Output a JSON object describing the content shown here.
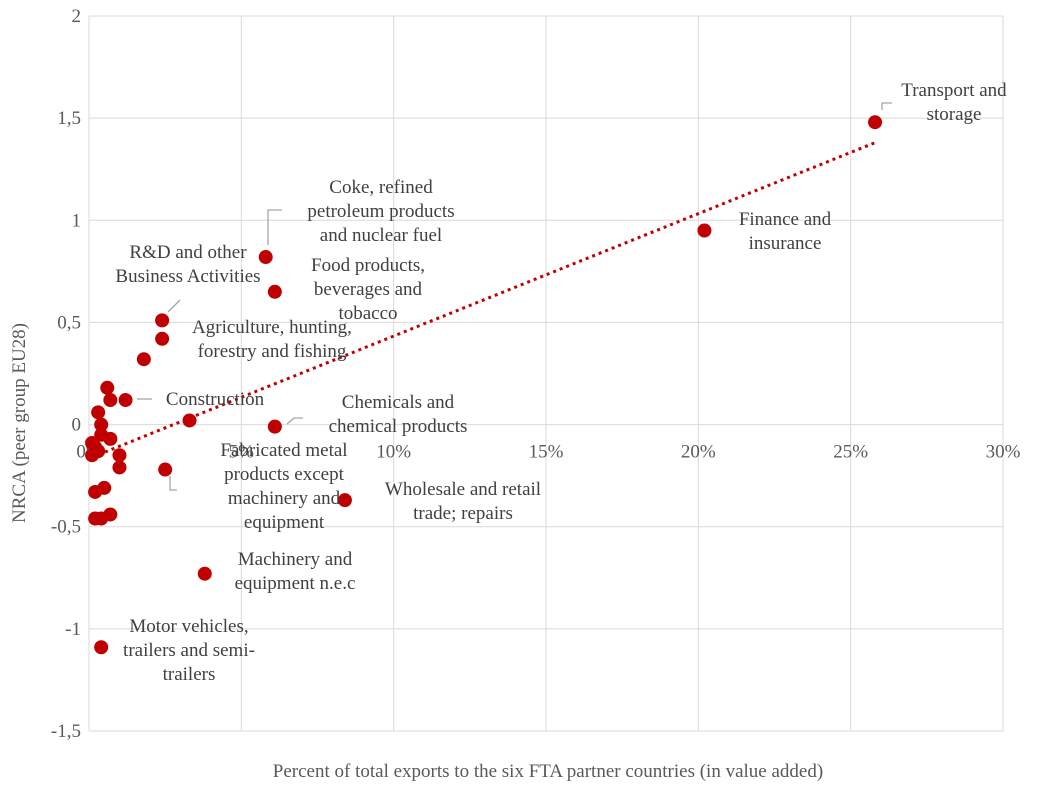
{
  "chart_data": {
    "type": "scatter",
    "xlabel": "Percent of total exports to the six FTA partner countries  (in value added)",
    "ylabel": "NRCA (peer group EU28)",
    "xlim": [
      0,
      30
    ],
    "ylim": [
      -1.5,
      2
    ],
    "x_ticks": [
      "0%",
      "5%",
      "10%",
      "15%",
      "20%",
      "25%",
      "30%"
    ],
    "y_ticks": [
      "2",
      "1,5",
      "1",
      "0,5",
      "0",
      "-0,5",
      "-1",
      "-1,5"
    ],
    "grid": true,
    "marker_color": "#c00000",
    "trendline": {
      "style": "dotted",
      "color": "#c00000",
      "x": [
        0.1,
        25.8
      ],
      "y": [
        -0.16,
        1.38
      ]
    },
    "points": [
      {
        "x": 25.8,
        "y": 1.48,
        "label": [
          "Transport and",
          "storage"
        ]
      },
      {
        "x": 20.2,
        "y": 0.95,
        "label": [
          "Finance and",
          "insurance"
        ]
      },
      {
        "x": 5.8,
        "y": 0.82,
        "label": [
          "Coke, refined",
          "petroleum products",
          "and nuclear fuel"
        ]
      },
      {
        "x": 6.1,
        "y": 0.65,
        "label": [
          "Food products,",
          "beverages and",
          "tobacco"
        ]
      },
      {
        "x": 2.4,
        "y": 0.51,
        "label": [
          "R&D and other",
          "Business Activities"
        ]
      },
      {
        "x": 2.4,
        "y": 0.42,
        "label": [
          "Agriculture, hunting,",
          "forestry and fishing"
        ]
      },
      {
        "x": 1.2,
        "y": 0.12,
        "label": [
          "Construction"
        ]
      },
      {
        "x": 6.1,
        "y": -0.01,
        "label": [
          "Chemicals and",
          "chemical products"
        ]
      },
      {
        "x": 2.5,
        "y": -0.22,
        "label": [
          "Fabricated metal",
          "products except",
          "machinery and",
          "equipment"
        ]
      },
      {
        "x": 8.4,
        "y": -0.37,
        "label": [
          "Wholesale and retail",
          "trade; repairs"
        ]
      },
      {
        "x": 3.8,
        "y": -0.73,
        "label": [
          "Machinery and",
          "equipment n.e.c"
        ]
      },
      {
        "x": 0.4,
        "y": -1.09,
        "label": [
          "Motor vehicles,",
          "trailers and semi-",
          "trailers"
        ]
      },
      {
        "x": 1.8,
        "y": 0.32,
        "label": []
      },
      {
        "x": 0.6,
        "y": 0.18,
        "label": []
      },
      {
        "x": 0.7,
        "y": 0.12,
        "label": []
      },
      {
        "x": 3.3,
        "y": 0.02,
        "label": []
      },
      {
        "x": 0.3,
        "y": 0.06,
        "label": []
      },
      {
        "x": 0.4,
        "y": 0.0,
        "label": []
      },
      {
        "x": 0.4,
        "y": -0.05,
        "label": []
      },
      {
        "x": 0.7,
        "y": -0.07,
        "label": []
      },
      {
        "x": 0.1,
        "y": -0.09,
        "label": []
      },
      {
        "x": 0.2,
        "y": -0.11,
        "label": []
      },
      {
        "x": 0.3,
        "y": -0.13,
        "label": []
      },
      {
        "x": 0.1,
        "y": -0.15,
        "label": []
      },
      {
        "x": 1.0,
        "y": -0.15,
        "label": []
      },
      {
        "x": 1.0,
        "y": -0.21,
        "label": []
      },
      {
        "x": 0.5,
        "y": -0.31,
        "label": []
      },
      {
        "x": 0.2,
        "y": -0.33,
        "label": []
      },
      {
        "x": 0.7,
        "y": -0.44,
        "label": []
      },
      {
        "x": 0.4,
        "y": -0.46,
        "label": []
      },
      {
        "x": 0.2,
        "y": -0.46,
        "label": []
      }
    ]
  }
}
